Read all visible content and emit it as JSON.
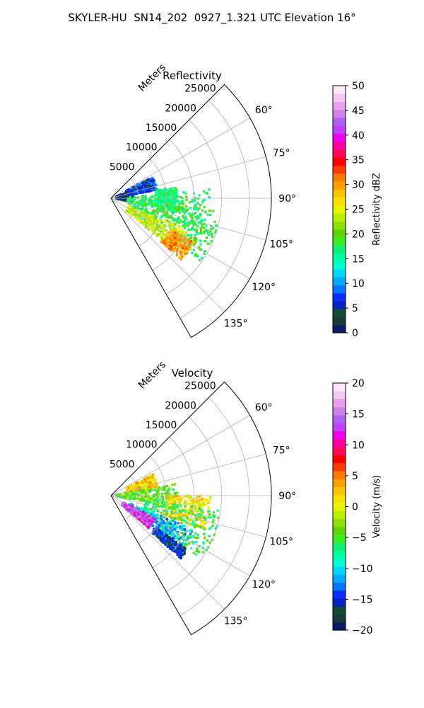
{
  "figure": {
    "title": "SKYLER-HU  SN14_202  0927_1.321 UTC Elevation 16°"
  },
  "chart_data": [
    {
      "type": "heatmap",
      "projection": "polar-sector",
      "title": "Reflectivity",
      "radial_label": "Meters",
      "radial_ticks": [
        "5000",
        "10000",
        "15000",
        "20000",
        "25000"
      ],
      "radial_tick_values": [
        5000,
        10000,
        15000,
        20000,
        25000
      ],
      "r_max": 29000,
      "azimuth_range_deg": [
        45,
        150
      ],
      "azimuth_ticks": [
        "60°",
        "75°",
        "90°",
        "105°",
        "120°",
        "135°"
      ],
      "azimuth_tick_values": [
        60,
        75,
        90,
        105,
        120,
        135
      ],
      "grid": true,
      "colorbar": {
        "label": "Reflectivity dBZ",
        "range": [
          0,
          50
        ],
        "ticks": [
          "0",
          "5",
          "10",
          "15",
          "20",
          "25",
          "30",
          "35",
          "40",
          "45",
          "50"
        ],
        "colors": [
          "#0d1a66",
          "#1b3a3a",
          "#124d33",
          "#0a22c2",
          "#0a2cff",
          "#0077ff",
          "#00aaff",
          "#00d8ff",
          "#00ffd0",
          "#00ffa0",
          "#10f070",
          "#38ee20",
          "#5fd400",
          "#8ee000",
          "#b8f000",
          "#e6f600",
          "#ffe000",
          "#ffc400",
          "#ffa000",
          "#ff7a00",
          "#ff3c00",
          "#ff0000",
          "#ff0a5a",
          "#ff00a0",
          "#f000f0",
          "#c040ff",
          "#b060f0",
          "#d080e8",
          "#e8a0ec",
          "#f4c8f4",
          "#fbe6fb"
        ]
      },
      "echo_regions": [
        {
          "az": [
            63,
            80
          ],
          "range_m": [
            3000,
            8500
          ],
          "value": 7
        },
        {
          "az": [
            70,
            100
          ],
          "range_m": [
            1000,
            4000
          ],
          "value": 4
        },
        {
          "az": [
            80,
            100
          ],
          "range_m": [
            8000,
            12000
          ],
          "value": 16
        },
        {
          "az": [
            85,
            112
          ],
          "range_m": [
            3000,
            18000
          ],
          "value": 17
        },
        {
          "az": [
            97,
            125
          ],
          "range_m": [
            6000,
            20000
          ],
          "value": 18
        },
        {
          "az": [
            112,
            130
          ],
          "range_m": [
            3500,
            15000
          ],
          "value": 24
        },
        {
          "az": [
            118,
            131
          ],
          "range_m": [
            12000,
            17000
          ],
          "value": 30
        }
      ]
    },
    {
      "type": "heatmap",
      "projection": "polar-sector",
      "title": "Velocity",
      "radial_label": "Meters",
      "radial_ticks": [
        "5000",
        "10000",
        "15000",
        "20000",
        "25000"
      ],
      "radial_tick_values": [
        5000,
        10000,
        15000,
        20000,
        25000
      ],
      "r_max": 29000,
      "azimuth_range_deg": [
        45,
        150
      ],
      "azimuth_ticks": [
        "60°",
        "75°",
        "90°",
        "105°",
        "120°",
        "135°"
      ],
      "azimuth_tick_values": [
        60,
        75,
        90,
        105,
        120,
        135
      ],
      "grid": true,
      "colorbar": {
        "label": "Velocity (m/s)",
        "range": [
          -20,
          20
        ],
        "ticks": [
          "−20",
          "−15",
          "−10",
          "−5",
          "0",
          "5",
          "10",
          "15",
          "20"
        ],
        "colors": [
          "#0d1a66",
          "#1b3a3a",
          "#124d33",
          "#0a22c2",
          "#0a2cff",
          "#0077ff",
          "#00aaff",
          "#00d8ff",
          "#00ffd0",
          "#00ffa0",
          "#10f070",
          "#38ee20",
          "#5fd400",
          "#8ee000",
          "#b8f000",
          "#e6f600",
          "#ffe000",
          "#ffc400",
          "#ffa000",
          "#ff7a00",
          "#ff3c00",
          "#ff0000",
          "#ff0a5a",
          "#ff00a0",
          "#f000f0",
          "#c040ff",
          "#b060f0",
          "#d080e8",
          "#e8a0ec",
          "#f4c8f4",
          "#fbe6fb"
        ]
      },
      "echo_regions": [
        {
          "az": [
            63,
            80
          ],
          "range_m": [
            3000,
            8500
          ],
          "value": 2
        },
        {
          "az": [
            80,
            100
          ],
          "range_m": [
            1000,
            12000
          ],
          "value": -4
        },
        {
          "az": [
            90,
            110
          ],
          "range_m": [
            10000,
            18000
          ],
          "value": 1
        },
        {
          "az": [
            97,
            125
          ],
          "range_m": [
            6000,
            20000
          ],
          "value": -6
        },
        {
          "az": [
            112,
            130
          ],
          "range_m": [
            3500,
            16000
          ],
          "value": -11
        },
        {
          "az": [
            118,
            131
          ],
          "range_m": [
            2500,
            9000
          ],
          "value": 13
        },
        {
          "az": [
            125,
            132
          ],
          "range_m": [
            10000,
            17000
          ],
          "value": -15
        }
      ]
    }
  ]
}
